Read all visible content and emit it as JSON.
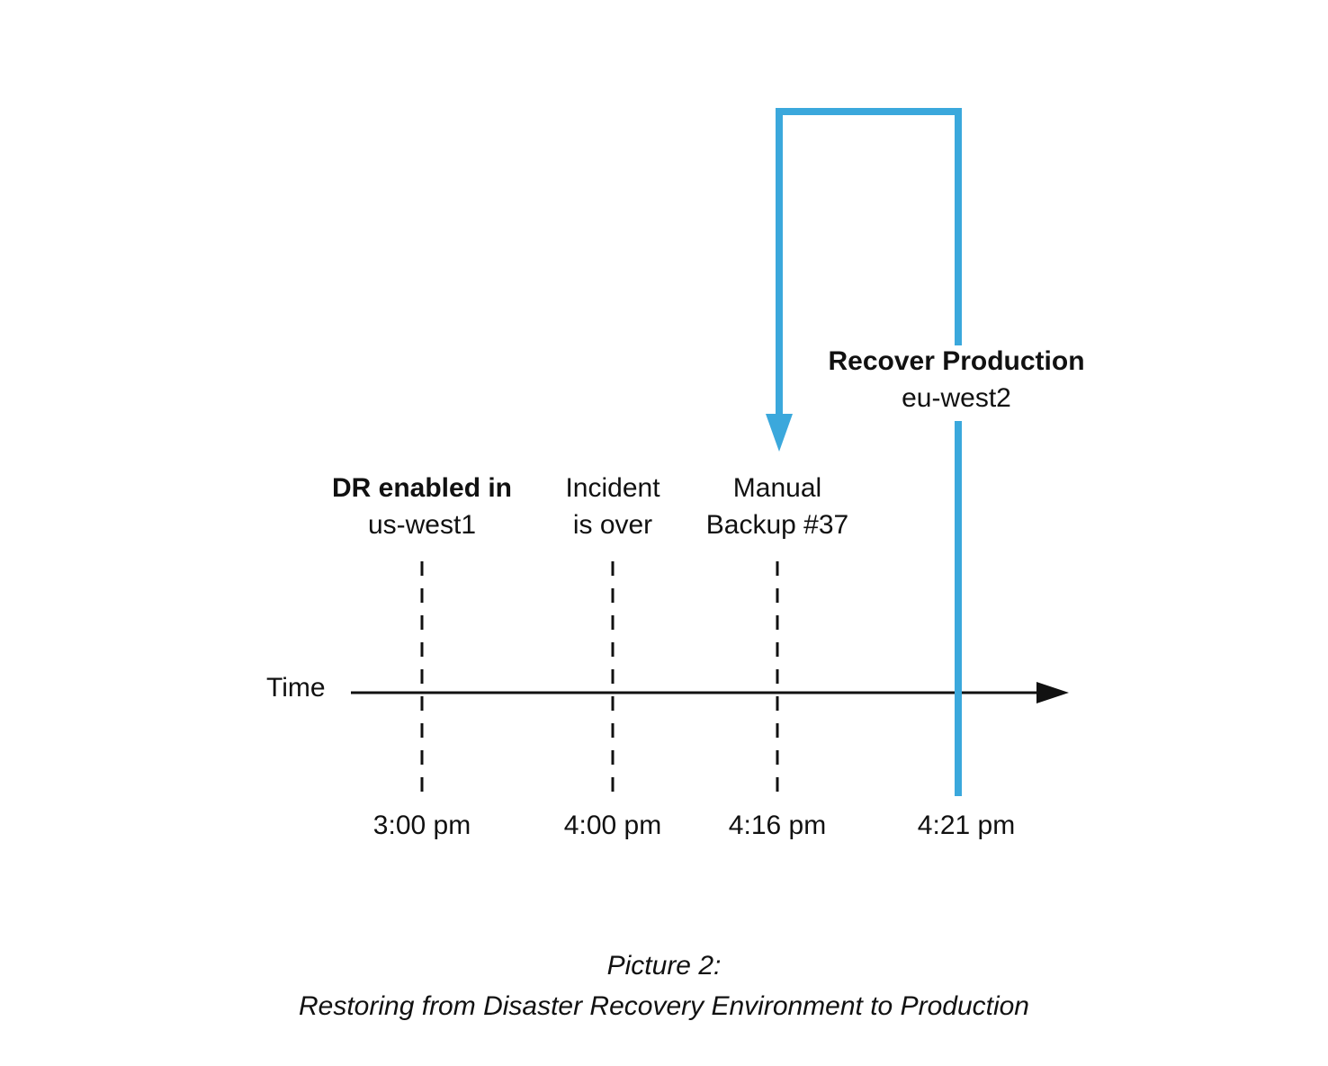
{
  "diagram": {
    "axis_label": "Time",
    "accent_color": "#3BA8DC",
    "events": [
      {
        "time": "3:00 pm",
        "label_bold": "DR enabled in",
        "label": "us-west1"
      },
      {
        "time": "4:00 pm",
        "label_line1": "Incident",
        "label_line2": "is over"
      },
      {
        "time": "4:16 pm",
        "label_line1": "Manual",
        "label_line2": "Backup #37"
      },
      {
        "time": "4:21 pm",
        "label_bold": "Recover Production",
        "label": "eu-west2"
      }
    ]
  },
  "caption": {
    "line1": "Picture 2:",
    "line2": "Restoring from Disaster Recovery Environment to Production"
  }
}
